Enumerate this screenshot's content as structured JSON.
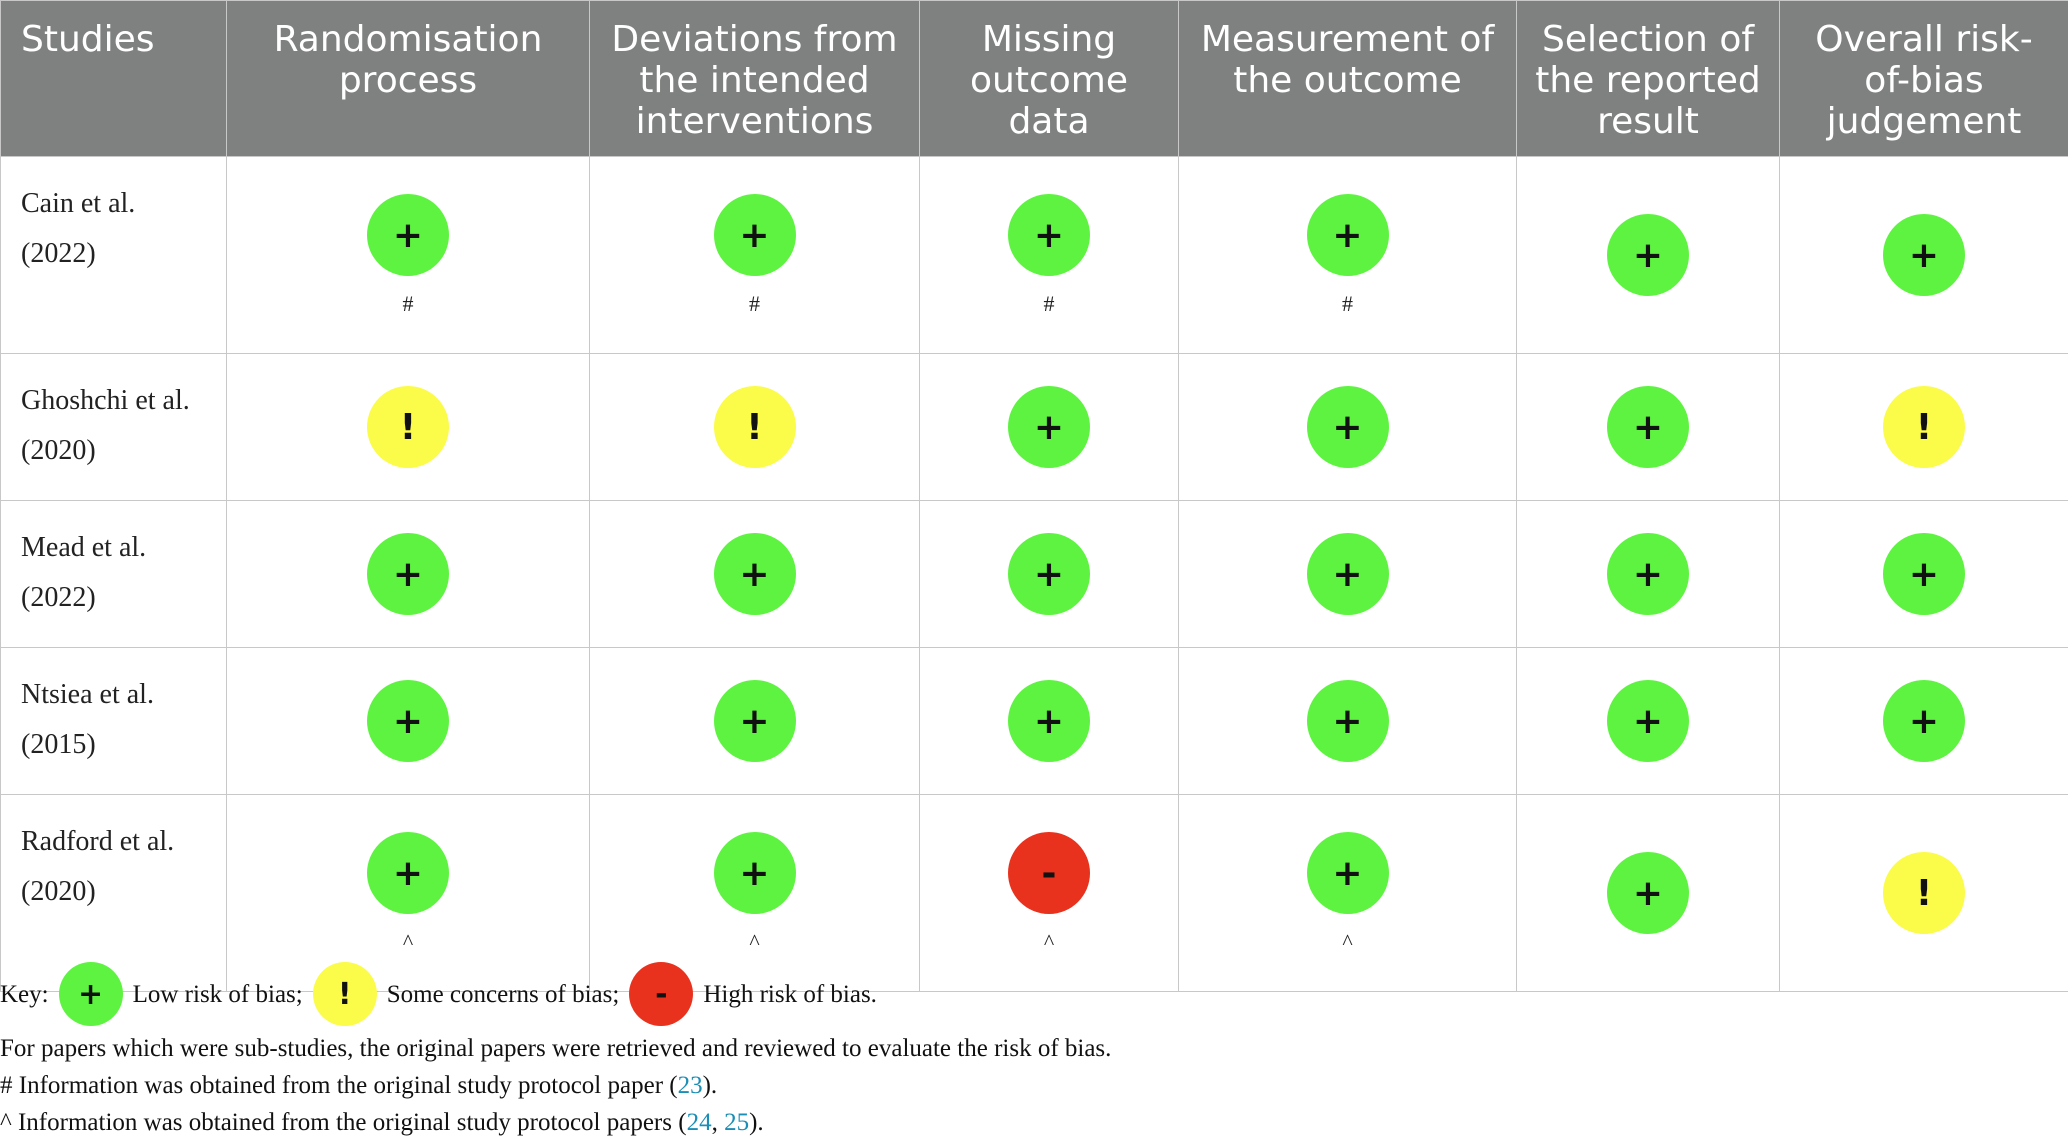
{
  "header": {
    "studies": "Studies",
    "col1": [
      "Randomisation",
      "process"
    ],
    "col2": [
      "Deviations from",
      "the intended",
      "interventions"
    ],
    "col3": [
      "Missing",
      "outcome",
      "data"
    ],
    "col4": [
      "Measurement of",
      "the outcome"
    ],
    "col5": [
      "Selection of",
      "the reported",
      "result"
    ],
    "col6": [
      "Overall risk-",
      "of-bias",
      "judgement"
    ]
  },
  "symbols": {
    "low": "+",
    "some": "!",
    "high": "-"
  },
  "rows": [
    {
      "study": [
        "Cain et al.",
        "(2022)"
      ],
      "ratings": [
        "low",
        "low",
        "low",
        "low",
        "low",
        "low"
      ],
      "notes": [
        "#",
        "#",
        "#",
        "#",
        "",
        ""
      ]
    },
    {
      "study": [
        "Ghoshchi et al.",
        "(2020)"
      ],
      "ratings": [
        "some",
        "some",
        "low",
        "low",
        "low",
        "some"
      ],
      "notes": [
        "",
        "",
        "",
        "",
        "",
        ""
      ]
    },
    {
      "study": [
        "Mead et al.",
        "(2022)"
      ],
      "ratings": [
        "low",
        "low",
        "low",
        "low",
        "low",
        "low"
      ],
      "notes": [
        "",
        "",
        "",
        "",
        "",
        ""
      ]
    },
    {
      "study": [
        "Ntsiea et al.",
        "(2015)"
      ],
      "ratings": [
        "low",
        "low",
        "low",
        "low",
        "low",
        "low"
      ],
      "notes": [
        "",
        "",
        "",
        "",
        "",
        ""
      ]
    },
    {
      "study": [
        "Radford et al.",
        "(2020)"
      ],
      "ratings": [
        "low",
        "low",
        "high",
        "low",
        "low",
        "some"
      ],
      "notes": [
        "^",
        "^",
        "^",
        "^",
        "",
        ""
      ]
    }
  ],
  "footer": {
    "key_label": "Key:",
    "low_label": "Low risk of bias;",
    "some_label": "Some concerns of bias;",
    "high_label": "High risk of bias.",
    "line2": "For papers which were sub-studies, the original papers were retrieved and reviewed to evaluate the risk of bias.",
    "line3_pre": "# Information was obtained from the original study protocol paper (",
    "line3_ref": "23",
    "line3_post": ").",
    "line4_pre": "^ Information was obtained from the original study protocol papers (",
    "line4_ref1": "24",
    "line4_sep": ", ",
    "line4_ref2": "25",
    "line4_post": ")."
  },
  "colors": {
    "low": "#5ef341",
    "some": "#fbfb4a",
    "high": "#e8321e",
    "header_bg": "#7f8180",
    "link": "#1a8eb5"
  }
}
